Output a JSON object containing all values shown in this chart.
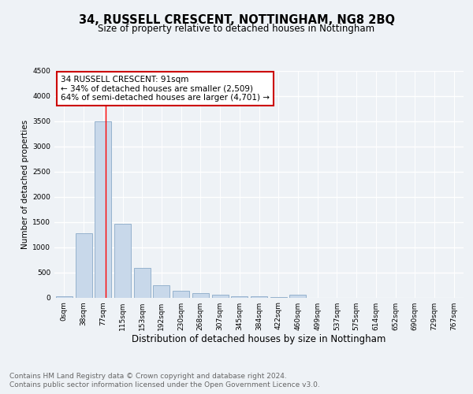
{
  "title": "34, RUSSELL CRESCENT, NOTTINGHAM, NG8 2BQ",
  "subtitle": "Size of property relative to detached houses in Nottingham",
  "xlabel": "Distribution of detached houses by size in Nottingham",
  "ylabel": "Number of detached properties",
  "categories": [
    "0sqm",
    "38sqm",
    "77sqm",
    "115sqm",
    "153sqm",
    "192sqm",
    "230sqm",
    "268sqm",
    "307sqm",
    "345sqm",
    "384sqm",
    "422sqm",
    "460sqm",
    "499sqm",
    "537sqm",
    "575sqm",
    "614sqm",
    "652sqm",
    "690sqm",
    "729sqm",
    "767sqm"
  ],
  "values": [
    30,
    1280,
    3500,
    1470,
    580,
    250,
    130,
    80,
    50,
    30,
    20,
    10,
    55,
    0,
    0,
    0,
    0,
    0,
    0,
    0,
    0
  ],
  "bar_color": "#c8d8ea",
  "bar_edge_color": "#8aaac8",
  "red_line_x": 2.14,
  "annotation_line1": "34 RUSSELL CRESCENT: 91sqm",
  "annotation_line2": "← 34% of detached houses are smaller (2,509)",
  "annotation_line3": "64% of semi-detached houses are larger (4,701) →",
  "annotation_box_color": "#ffffff",
  "annotation_box_edge_color": "#cc0000",
  "ylim": [
    0,
    4500
  ],
  "yticks": [
    0,
    500,
    1000,
    1500,
    2000,
    2500,
    3000,
    3500,
    4000,
    4500
  ],
  "footer_line1": "Contains HM Land Registry data © Crown copyright and database right 2024.",
  "footer_line2": "Contains public sector information licensed under the Open Government Licence v3.0.",
  "bg_color": "#eef2f6",
  "plot_bg_color": "#eef2f6",
  "grid_color": "#ffffff",
  "title_fontsize": 10.5,
  "subtitle_fontsize": 8.5,
  "xlabel_fontsize": 8.5,
  "ylabel_fontsize": 7.5,
  "tick_fontsize": 6.5,
  "annotation_fontsize": 7.5,
  "footer_fontsize": 6.5
}
